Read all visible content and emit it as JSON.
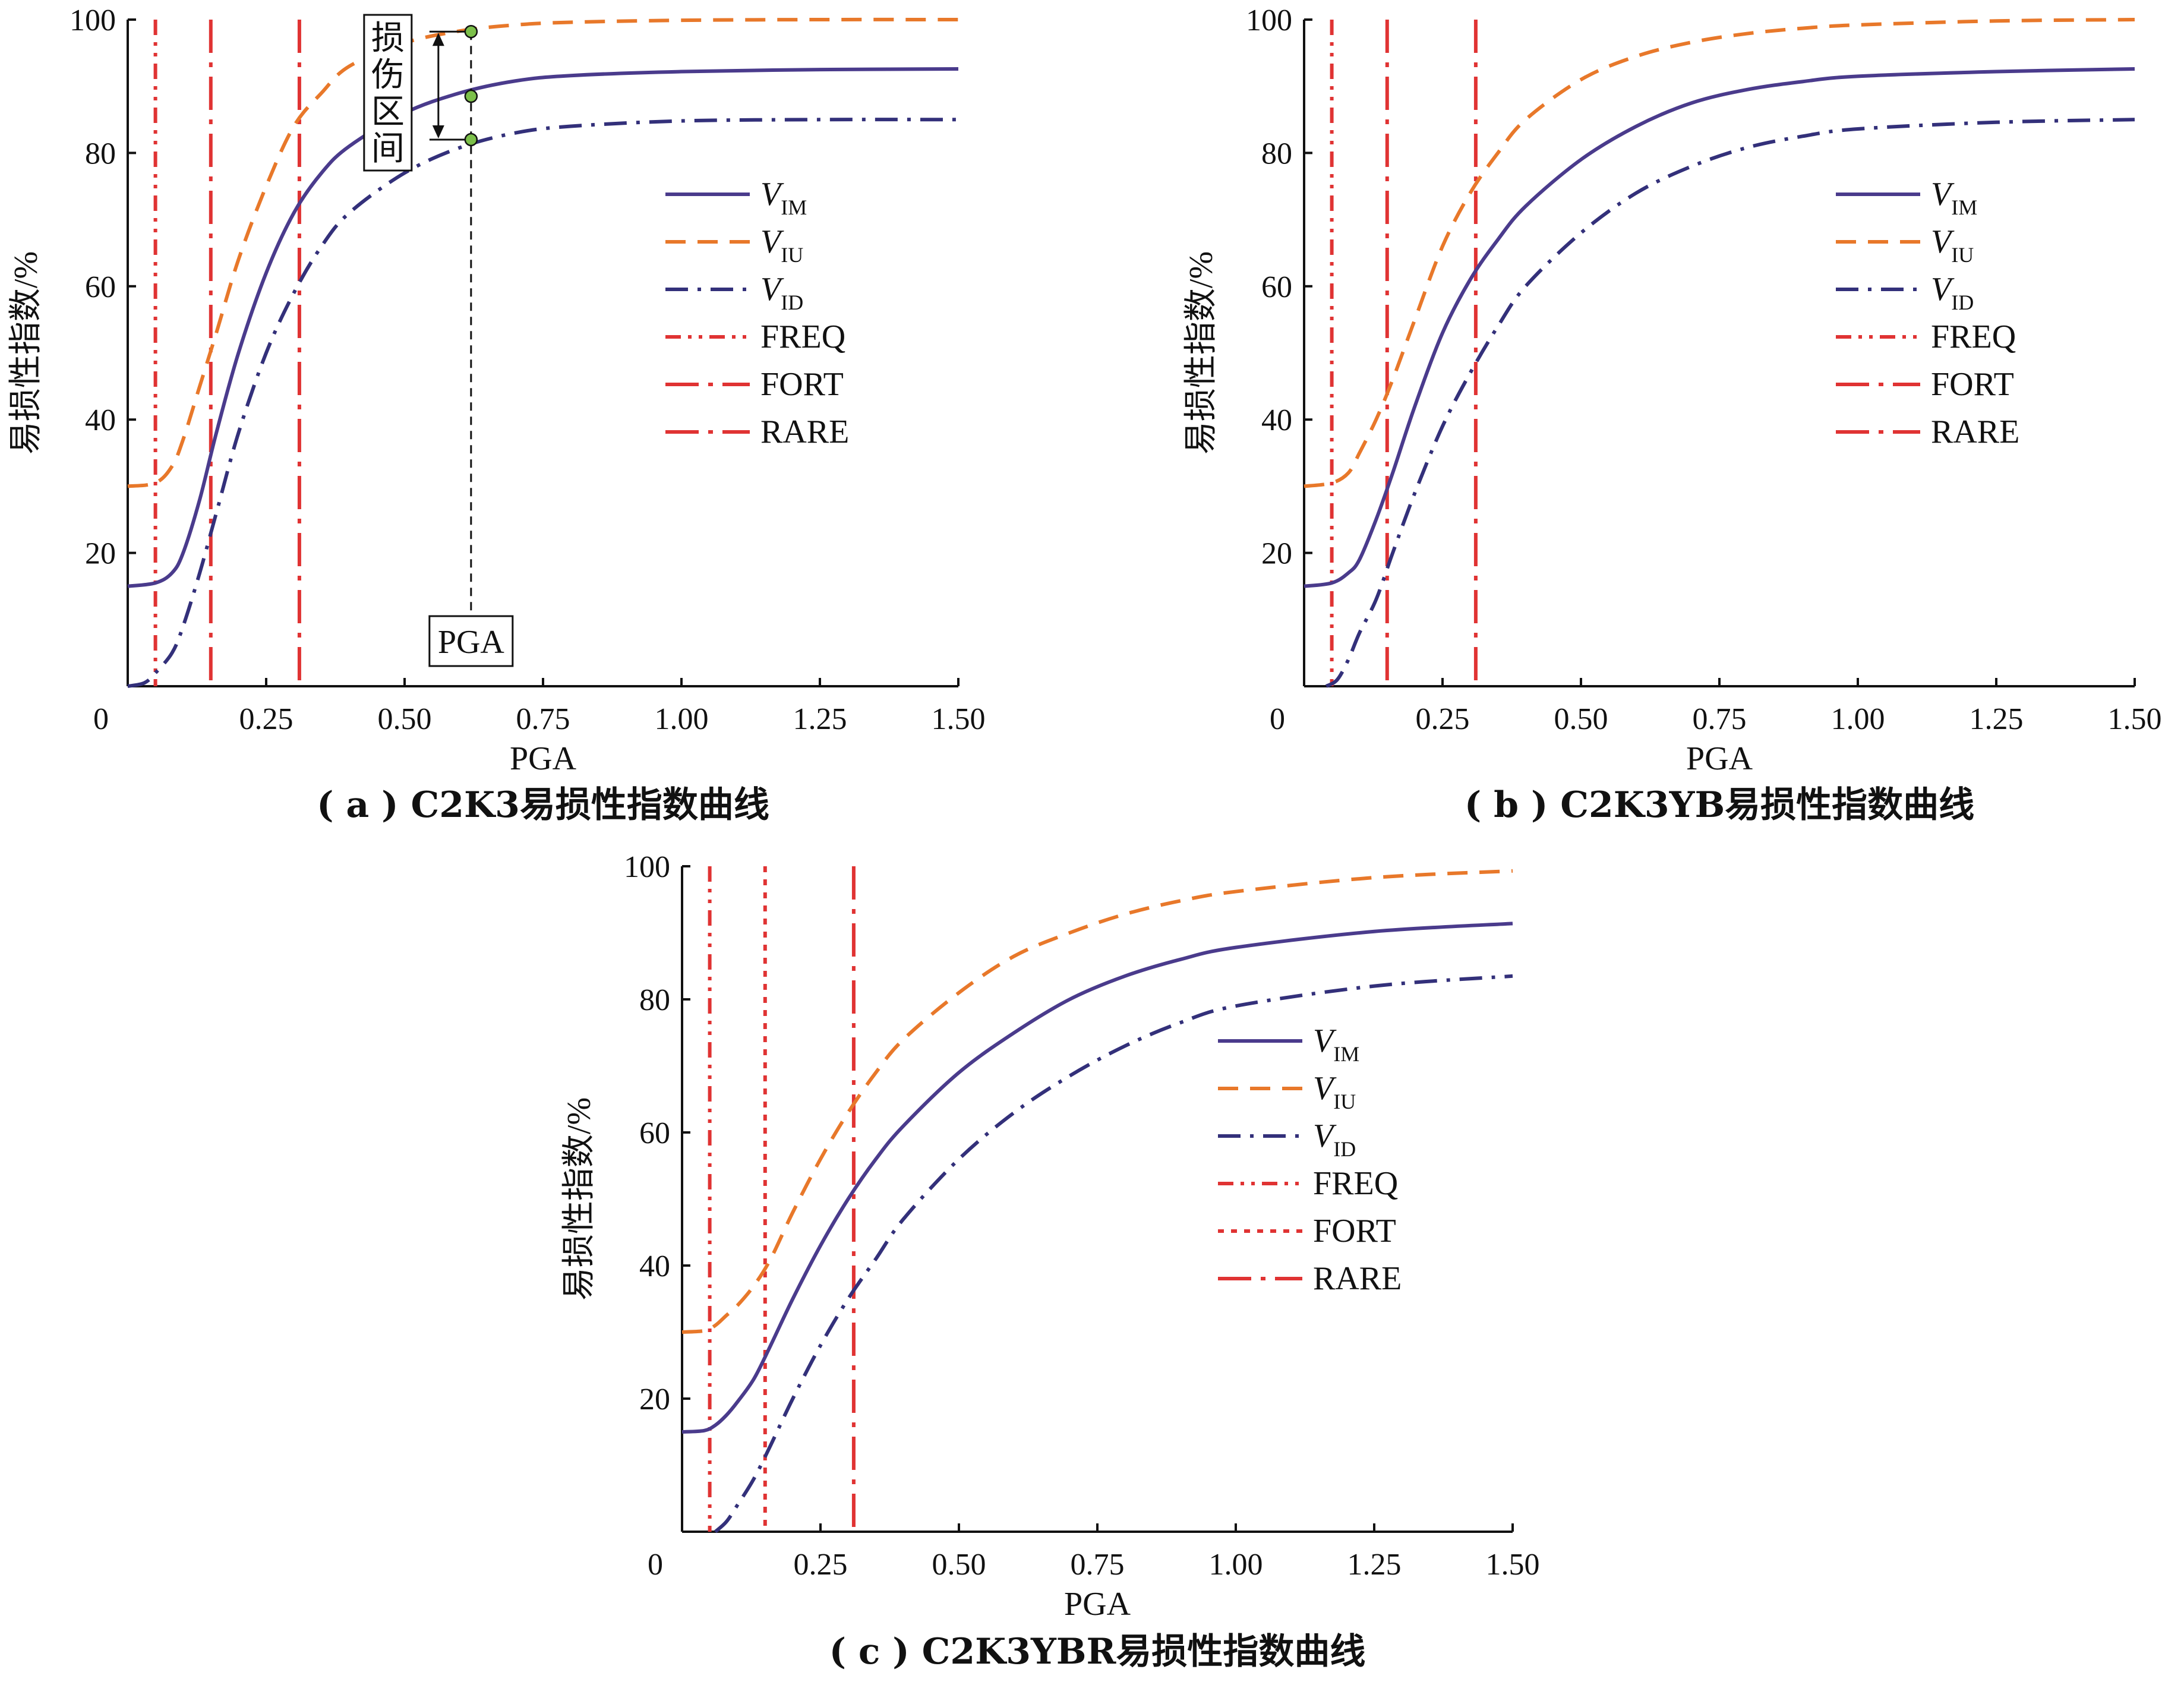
{
  "colors": {
    "VIM": "#4a3b8c",
    "VIU": "#e8782a",
    "VID": "#33307a",
    "ref": "#e03333",
    "axis": "#111111",
    "annot_marker": "#7cc04a"
  },
  "chart_data": [
    {
      "id": "a",
      "type": "line",
      "caption": "( a ) C2K3易损性指数曲线",
      "xlabel": "PGA",
      "ylabel": "易损性指数/%",
      "xlim": [
        0,
        1.5
      ],
      "ylim": [
        0,
        100
      ],
      "x_ticks": [
        "0",
        "0.25",
        "0.50",
        "0.75",
        "1.00",
        "1.25",
        "1.50"
      ],
      "y_ticks": [
        "20",
        "40",
        "60",
        "80",
        "100"
      ],
      "grid": false,
      "legend_position": "right",
      "series": [
        {
          "key": "VIM",
          "label_main": "V",
          "label_sub": "IM",
          "style": "solid",
          "x": [
            0,
            0.05,
            0.08,
            0.1,
            0.13,
            0.16,
            0.2,
            0.25,
            0.3,
            0.35,
            0.4,
            0.5,
            0.6,
            0.7,
            0.8,
            1.0,
            1.25,
            1.5
          ],
          "y": [
            15,
            15.5,
            17,
            20,
            28,
            38,
            50,
            62,
            71,
            77,
            81,
            86,
            89,
            90.8,
            91.6,
            92.2,
            92.5,
            92.6
          ]
        },
        {
          "key": "VIU",
          "label_main": "V",
          "label_sub": "IU",
          "style": "dashed",
          "x": [
            0,
            0.05,
            0.08,
            0.1,
            0.13,
            0.16,
            0.2,
            0.25,
            0.3,
            0.35,
            0.4,
            0.5,
            0.6,
            0.7,
            0.8,
            1.0,
            1.25,
            1.5
          ],
          "y": [
            30,
            30.5,
            33,
            37,
            45,
            53,
            64,
            75,
            84,
            89,
            93,
            96.5,
            98.3,
            99.2,
            99.6,
            99.9,
            100,
            100
          ]
        },
        {
          "key": "VID",
          "label_main": "V",
          "label_sub": "ID",
          "style": "dashdot",
          "x": [
            0,
            0.03,
            0.05,
            0.08,
            0.1,
            0.13,
            0.16,
            0.2,
            0.25,
            0.3,
            0.35,
            0.4,
            0.5,
            0.6,
            0.7,
            0.8,
            1.0,
            1.25,
            1.5
          ],
          "y": [
            0,
            0.5,
            2,
            5,
            9,
            17,
            26,
            38,
            50,
            59,
            66,
            71,
            77,
            80.8,
            83,
            84,
            84.8,
            85,
            85
          ]
        }
      ],
      "ref_lines": [
        {
          "label": "FREQ",
          "x": 0.05,
          "style": "dashdotdot"
        },
        {
          "label": "FORT",
          "x": 0.15,
          "style": "longdashdot"
        },
        {
          "label": "RARE",
          "x": 0.31,
          "style": "longdashdot"
        }
      ],
      "annotation": {
        "text_chars": [
          "损",
          "伤",
          "区",
          "间"
        ],
        "pga_label": "PGA",
        "x": 0.62,
        "y_top": 98.2,
        "y_mid": 88.5,
        "y_bottom": 82
      }
    },
    {
      "id": "b",
      "type": "line",
      "caption": "( b ) C2K3YB易损性指数曲线",
      "xlabel": "PGA",
      "ylabel": "易损性指数/%",
      "xlim": [
        0,
        1.5
      ],
      "ylim": [
        0,
        100
      ],
      "x_ticks": [
        "0",
        "0.25",
        "0.50",
        "0.75",
        "1.00",
        "1.25",
        "1.50"
      ],
      "y_ticks": [
        "20",
        "40",
        "60",
        "80",
        "100"
      ],
      "grid": false,
      "legend_position": "right",
      "series": [
        {
          "key": "VIM",
          "label_main": "V",
          "label_sub": "IM",
          "style": "solid",
          "x": [
            0,
            0.05,
            0.08,
            0.1,
            0.13,
            0.16,
            0.2,
            0.25,
            0.3,
            0.35,
            0.4,
            0.5,
            0.6,
            0.7,
            0.8,
            0.9,
            1.0,
            1.25,
            1.5
          ],
          "y": [
            15,
            15.5,
            17,
            19,
            25,
            32,
            42,
            53,
            61,
            67,
            72,
            79,
            84,
            87.5,
            89.5,
            90.7,
            91.5,
            92.2,
            92.6
          ]
        },
        {
          "key": "VIU",
          "label_main": "V",
          "label_sub": "IU",
          "style": "dashed",
          "x": [
            0,
            0.05,
            0.08,
            0.1,
            0.13,
            0.16,
            0.2,
            0.25,
            0.3,
            0.35,
            0.4,
            0.5,
            0.6,
            0.7,
            0.8,
            0.9,
            1.0,
            1.25,
            1.5
          ],
          "y": [
            30,
            30.5,
            32,
            35,
            40,
            46,
            55,
            66,
            74,
            80,
            85,
            91,
            94.5,
            96.6,
            97.9,
            98.7,
            99.2,
            99.8,
            100
          ]
        },
        {
          "key": "VID",
          "label_main": "V",
          "label_sub": "ID",
          "style": "dashdot",
          "x": [
            0.04,
            0.06,
            0.08,
            0.1,
            0.13,
            0.16,
            0.2,
            0.25,
            0.3,
            0.35,
            0.4,
            0.5,
            0.6,
            0.7,
            0.8,
            0.9,
            1.0,
            1.25,
            1.5
          ],
          "y": [
            0,
            1,
            4,
            8,
            13,
            20,
            29,
            39,
            47,
            54,
            60,
            68,
            74,
            78,
            80.8,
            82.5,
            83.6,
            84.6,
            85
          ]
        }
      ],
      "ref_lines": [
        {
          "label": "FREQ",
          "x": 0.05,
          "style": "dashdotdot"
        },
        {
          "label": "FORT",
          "x": 0.15,
          "style": "longdashdot"
        },
        {
          "label": "RARE",
          "x": 0.31,
          "style": "longdashdot"
        }
      ]
    },
    {
      "id": "c",
      "type": "line",
      "caption": "( c ) C2K3YBR易损性指数曲线",
      "xlabel": "PGA",
      "ylabel": "易损性指数/%",
      "xlim": [
        0,
        1.5
      ],
      "ylim": [
        0,
        100
      ],
      "x_ticks": [
        "0",
        "0.25",
        "0.50",
        "0.75",
        "1.00",
        "1.25",
        "1.50"
      ],
      "y_ticks": [
        "20",
        "40",
        "60",
        "80",
        "100"
      ],
      "grid": false,
      "legend_position": "right",
      "series": [
        {
          "key": "VIM",
          "label_main": "V",
          "label_sub": "IM",
          "style": "solid",
          "x": [
            0,
            0.04,
            0.06,
            0.08,
            0.1,
            0.13,
            0.16,
            0.2,
            0.25,
            0.3,
            0.35,
            0.4,
            0.5,
            0.6,
            0.7,
            0.8,
            0.9,
            1.0,
            1.25,
            1.5
          ],
          "y": [
            15,
            15.2,
            16,
            17.5,
            19.5,
            23,
            28,
            35,
            43,
            50,
            56,
            61,
            69,
            75,
            80,
            83.5,
            86,
            87.8,
            90.2,
            91.4
          ]
        },
        {
          "key": "VIU",
          "label_main": "V",
          "label_sub": "IU",
          "style": "dashed",
          "x": [
            0,
            0.04,
            0.06,
            0.08,
            0.1,
            0.13,
            0.16,
            0.2,
            0.25,
            0.3,
            0.35,
            0.4,
            0.5,
            0.6,
            0.7,
            0.8,
            0.9,
            1.0,
            1.25,
            1.5
          ],
          "y": [
            30,
            30.2,
            31,
            32.5,
            34,
            37,
            41,
            48,
            56,
            63,
            69,
            74,
            81,
            86.5,
            90,
            92.8,
            94.8,
            96.2,
            98.3,
            99.3
          ]
        },
        {
          "key": "VID",
          "label_main": "V",
          "label_sub": "ID",
          "style": "dashdot",
          "x": [
            0.06,
            0.08,
            0.1,
            0.13,
            0.16,
            0.2,
            0.25,
            0.3,
            0.35,
            0.4,
            0.5,
            0.6,
            0.7,
            0.8,
            0.9,
            1.0,
            1.25,
            1.5
          ],
          "y": [
            0,
            1.5,
            4,
            8,
            13,
            20,
            28,
            35,
            41,
            47,
            56,
            63,
            68.5,
            73,
            76.5,
            79,
            82,
            83.5
          ]
        }
      ],
      "ref_lines": [
        {
          "label": "FREQ",
          "x": 0.05,
          "style": "dashdotdot"
        },
        {
          "label": "FORT",
          "x": 0.15,
          "style": "dotted"
        },
        {
          "label": "RARE",
          "x": 0.31,
          "style": "longdashdot"
        }
      ]
    }
  ]
}
